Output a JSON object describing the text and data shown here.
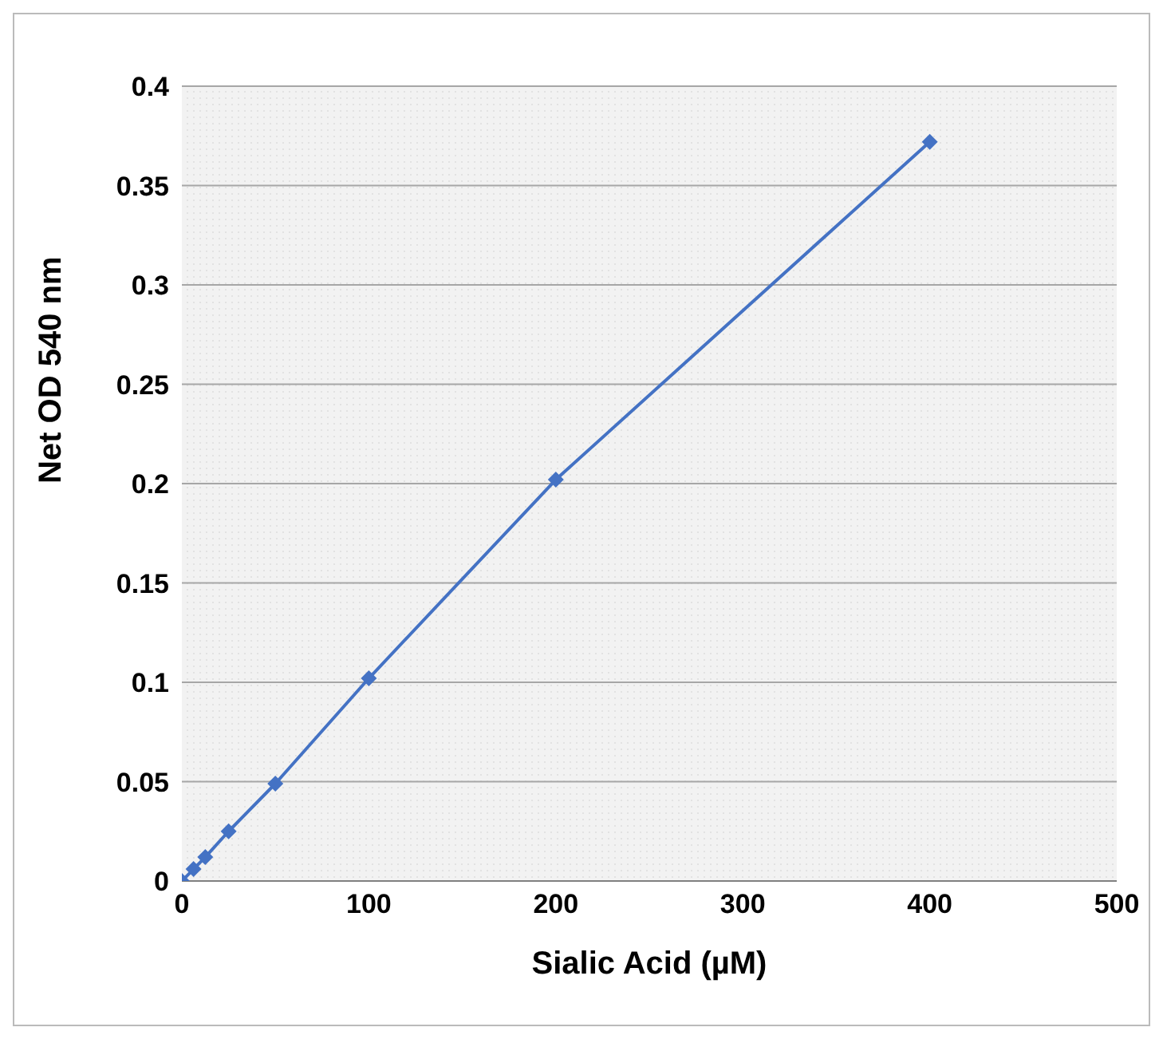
{
  "chart_data": {
    "type": "line",
    "xlabel": "Sialic Acid (µM)",
    "ylabel": "Net OD 540 nm",
    "x": [
      0,
      6.25,
      12.5,
      25,
      50,
      100,
      200,
      400
    ],
    "series": [
      {
        "color": "#4472c4",
        "values": [
          0,
          0.006,
          0.012,
          0.025,
          0.049,
          0.102,
          0.202,
          0.372
        ]
      }
    ],
    "xlim": [
      0,
      500
    ],
    "xticks": [
      0,
      100,
      200,
      300,
      400,
      500
    ],
    "ylim": [
      0,
      0.4
    ],
    "yticks": [
      0,
      0.05,
      0.1,
      0.15,
      0.2,
      0.25,
      0.3,
      0.35,
      0.4
    ],
    "grid": "y",
    "marker": "diamond",
    "line_style": "solid"
  }
}
